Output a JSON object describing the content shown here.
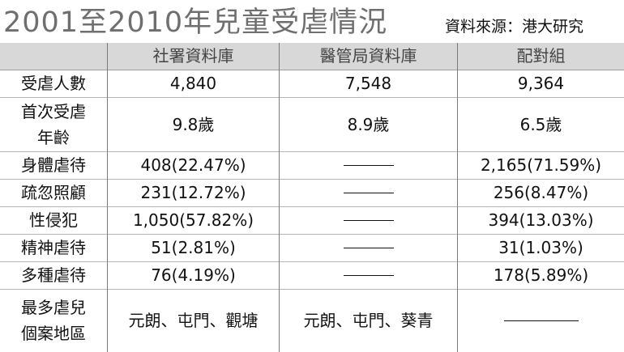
{
  "title": "2001至2010年兒童受虐情況",
  "source": "資料來源：港大研究",
  "headers": [
    "",
    "社署資料庫",
    "醫管局資料庫",
    "配對組"
  ],
  "rows": [
    {
      "label": [
        "受虐人數"
      ],
      "values": [
        "4,840",
        "7,548",
        "9,364"
      ]
    },
    {
      "label": [
        "首次受虐",
        "年齡"
      ],
      "values": [
        "9.8歲",
        "8.9歲",
        "6.5歲"
      ]
    },
    {
      "label": [
        "身體虐待"
      ],
      "values": [
        "408(22.47%)",
        "——",
        "2,165(71.59%)"
      ]
    },
    {
      "label": [
        "疏忽照顧"
      ],
      "values": [
        "231(12.72%)",
        "——",
        "256(8.47%)"
      ]
    },
    {
      "label": [
        "性侵犯"
      ],
      "values": [
        "1,050(57.82%)",
        "——",
        "394(13.03%)"
      ]
    },
    {
      "label": [
        "精神虐待"
      ],
      "values": [
        "51(2.81%)",
        "——",
        "31(1.03%)"
      ]
    },
    {
      "label": [
        "多種虐待"
      ],
      "values": [
        "76(4.19%)",
        "——",
        "178(5.89%)"
      ]
    },
    {
      "label": [
        "最多虐兒",
        "個案地區"
      ],
      "values": [
        "元朗、屯門、觀塘",
        "元朗、屯門、葵青",
        "——"
      ]
    }
  ]
}
